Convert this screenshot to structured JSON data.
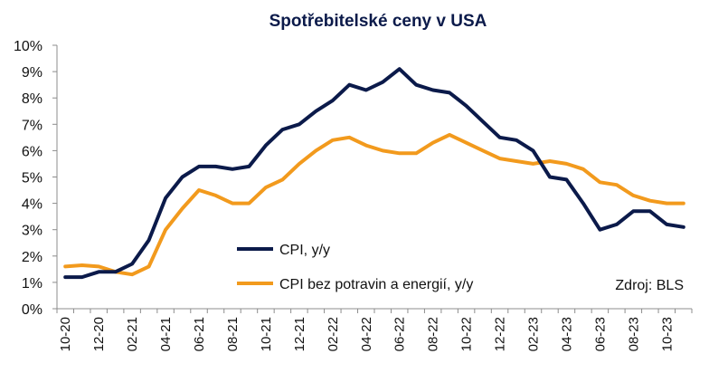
{
  "chart_data": {
    "type": "line",
    "title": "Spotřebitelské ceny v USA",
    "source": "Zdroj: BLS",
    "xlabel": "",
    "ylabel": "",
    "ylim": [
      0,
      10
    ],
    "y_ticks": [
      "0%",
      "1%",
      "2%",
      "3%",
      "4%",
      "5%",
      "6%",
      "7%",
      "8%",
      "9%",
      "10%"
    ],
    "grid": false,
    "legend_position": "bottom-left",
    "x_tick_labels": [
      "10-20",
      "12-20",
      "02-21",
      "04-21",
      "06-21",
      "08-21",
      "10-21",
      "12-21",
      "02-22",
      "04-22",
      "06-22",
      "08-22",
      "10-22",
      "12-22",
      "02-23",
      "04-23",
      "06-23",
      "08-23",
      "10-23"
    ],
    "x": [
      "10-20",
      "11-20",
      "12-20",
      "01-21",
      "02-21",
      "03-21",
      "04-21",
      "05-21",
      "06-21",
      "07-21",
      "08-21",
      "09-21",
      "10-21",
      "11-21",
      "12-21",
      "01-22",
      "02-22",
      "03-22",
      "04-22",
      "05-22",
      "06-22",
      "07-22",
      "08-22",
      "09-22",
      "10-22",
      "11-22",
      "12-22",
      "01-23",
      "02-23",
      "03-23",
      "04-23",
      "05-23",
      "06-23",
      "07-23",
      "08-23",
      "09-23",
      "10-23",
      "11-23"
    ],
    "series": [
      {
        "name": "CPI, y/y",
        "color": "#0b1a4a",
        "values": [
          1.2,
          1.2,
          1.4,
          1.4,
          1.7,
          2.6,
          4.2,
          5.0,
          5.4,
          5.4,
          5.3,
          5.4,
          6.2,
          6.8,
          7.0,
          7.5,
          7.9,
          8.5,
          8.3,
          8.6,
          9.1,
          8.5,
          8.3,
          8.2,
          7.7,
          7.1,
          6.5,
          6.4,
          6.0,
          5.0,
          4.9,
          4.0,
          3.0,
          3.2,
          3.7,
          3.7,
          3.2,
          3.1
        ]
      },
      {
        "name": "CPI bez potravin a energií, y/y",
        "color": "#f29a1d",
        "values": [
          1.6,
          1.65,
          1.6,
          1.4,
          1.3,
          1.6,
          3.0,
          3.8,
          4.5,
          4.3,
          4.0,
          4.0,
          4.6,
          4.9,
          5.5,
          6.0,
          6.4,
          6.5,
          6.2,
          6.0,
          5.9,
          5.9,
          6.3,
          6.6,
          6.3,
          6.0,
          5.7,
          5.6,
          5.5,
          5.6,
          5.5,
          5.3,
          4.8,
          4.7,
          4.3,
          4.1,
          4.0,
          4.0
        ]
      }
    ]
  }
}
